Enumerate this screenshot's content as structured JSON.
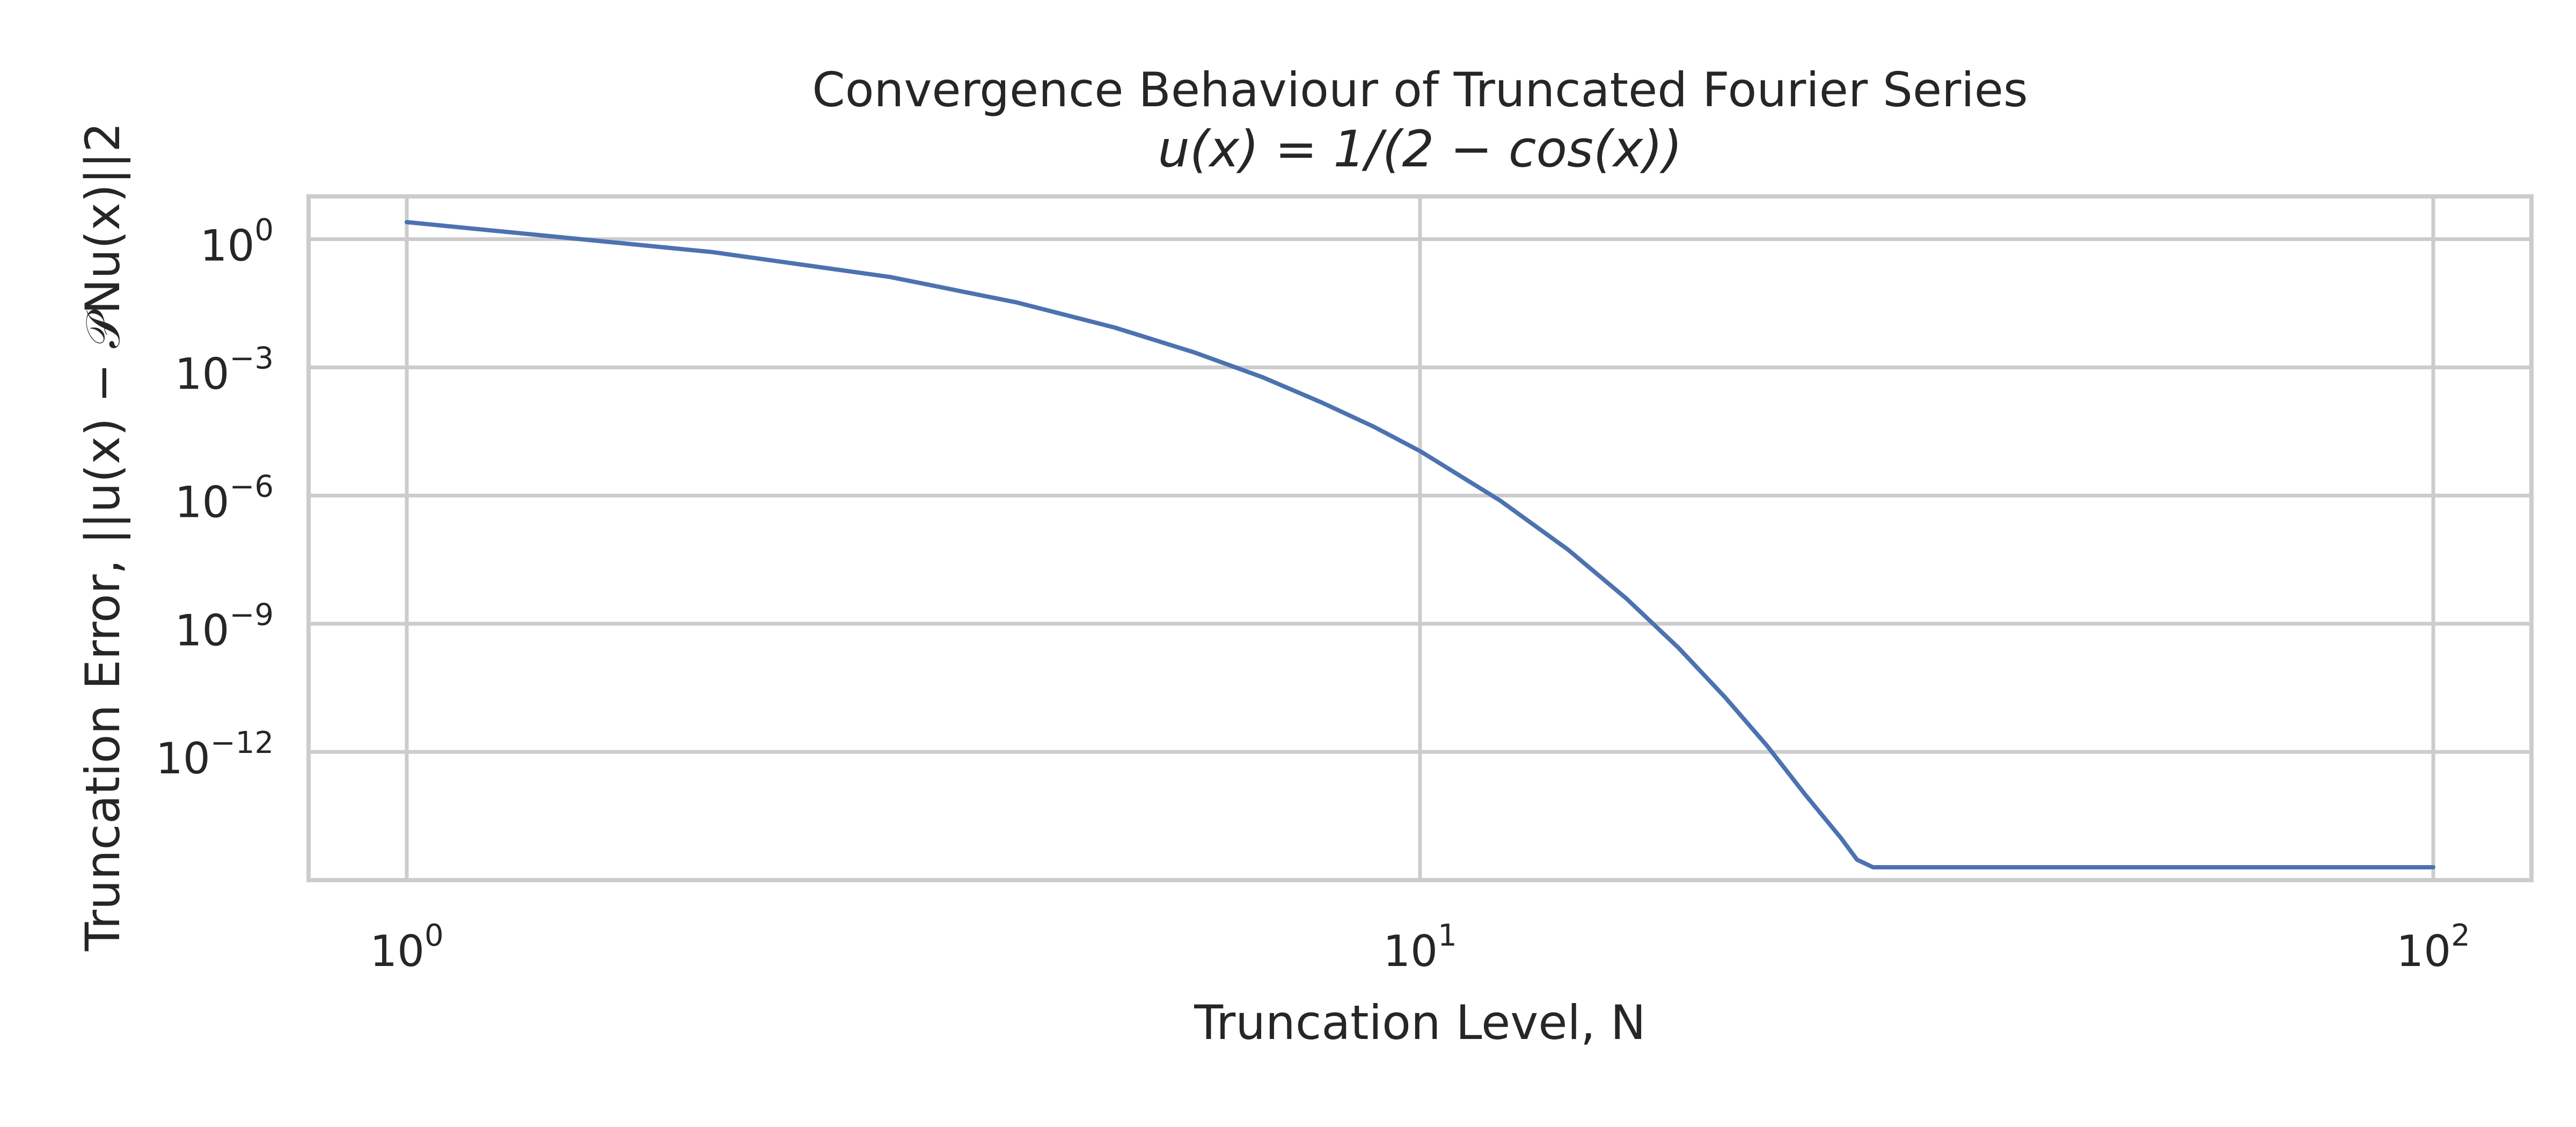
{
  "chart_data": {
    "type": "line",
    "title": "Convergence Behaviour of Truncated Fourier Series",
    "subtitle": "u(x) = 1/(2 − cos(x))",
    "xlabel": "Truncation Level, N",
    "ylabel": "Truncation Error, ||u(x) − 𝒫Nu(x)||2",
    "xscale": "log",
    "yscale": "log",
    "xlim": [
      0.8,
      125
    ],
    "ylim": [
      1e-15,
      10
    ],
    "grid": true,
    "x_ticks": [
      {
        "value": 1,
        "base": "10",
        "exp": "0"
      },
      {
        "value": 10,
        "base": "10",
        "exp": "1"
      },
      {
        "value": 100,
        "base": "10",
        "exp": "2"
      }
    ],
    "y_ticks": [
      {
        "value": 1,
        "base": "10",
        "exp": "0"
      },
      {
        "value": 0.001,
        "base": "10",
        "exp": "−3"
      },
      {
        "value": 1e-06,
        "base": "10",
        "exp": "−6"
      },
      {
        "value": 1e-09,
        "base": "10",
        "exp": "−9"
      },
      {
        "value": 1e-12,
        "base": "10",
        "exp": "−12"
      }
    ],
    "series": [
      {
        "color": "#4c72b0",
        "x": [
          1,
          2,
          3,
          4,
          5,
          6,
          7,
          8,
          9,
          10,
          12,
          14,
          16,
          18,
          20,
          22,
          24,
          26,
          27,
          28,
          30,
          40,
          50,
          60,
          70,
          80,
          90,
          100
        ],
        "y": [
          2.5,
          0.5,
          0.13,
          0.033,
          0.0085,
          0.0022,
          0.00058,
          0.00015,
          4.1e-05,
          1.1e-05,
          7.6e-07,
          5.4e-08,
          3.8e-09,
          2.7e-10,
          1.9e-11,
          1.4e-12,
          1e-13,
          1e-14,
          3e-15,
          2e-15,
          2e-15,
          2e-15,
          2e-15,
          2e-15,
          2e-15,
          2e-15,
          2e-15,
          2e-15
        ]
      }
    ]
  }
}
